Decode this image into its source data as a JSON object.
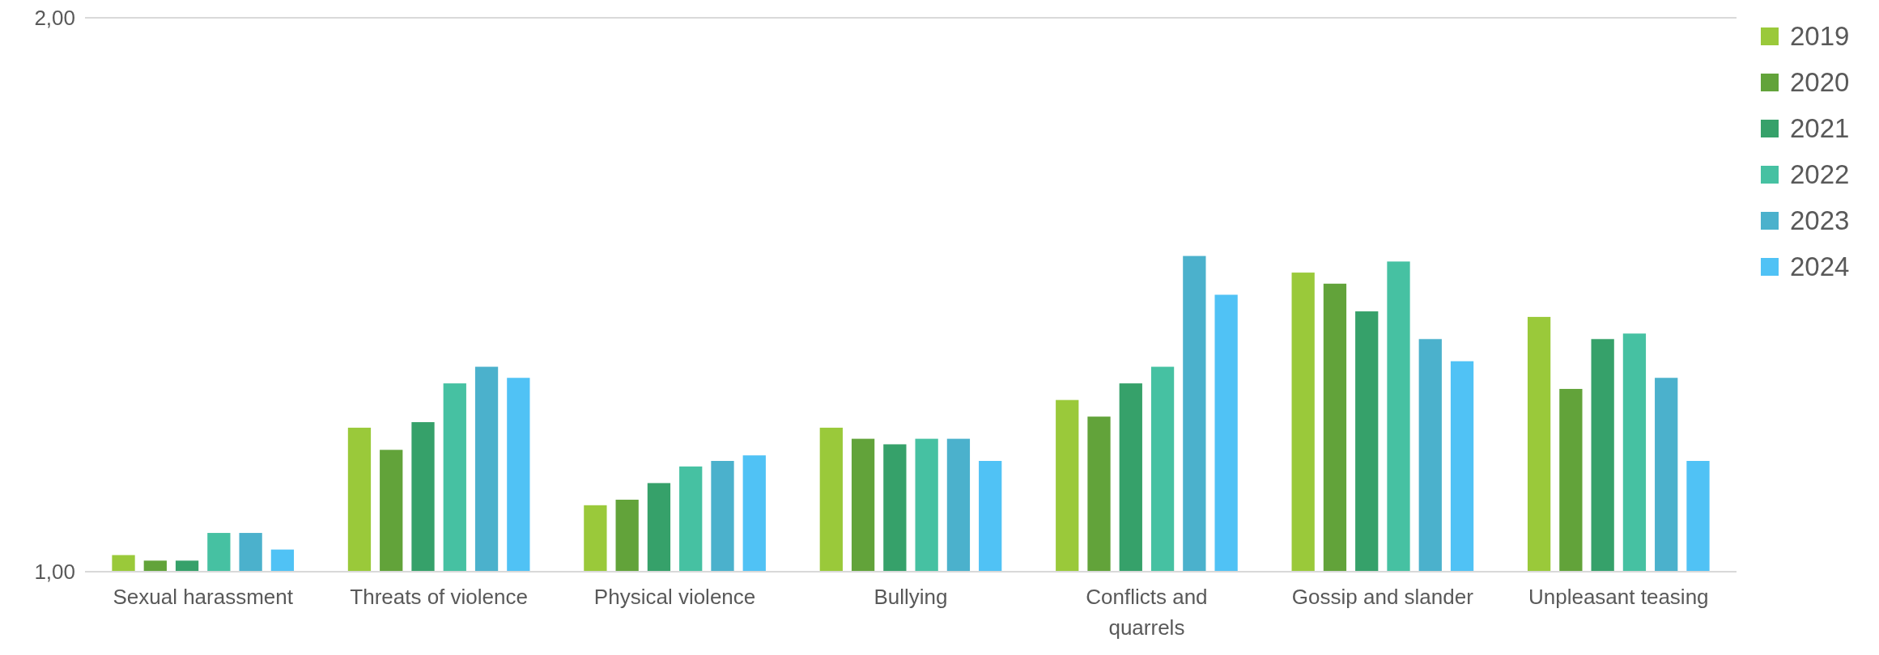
{
  "chart_data": {
    "type": "bar",
    "categories": [
      "Sexual harassment",
      "Threats of violence",
      "Physical violence",
      "Bullying",
      "Conflicts and quarrels",
      "Gossip and slander",
      "Unpleasant teasing"
    ],
    "series": [
      {
        "name": "2019",
        "color": "#9ac93a",
        "values": [
          1.03,
          1.26,
          1.12,
          1.26,
          1.31,
          1.54,
          1.46
        ]
      },
      {
        "name": "2020",
        "color": "#62a33a",
        "values": [
          1.02,
          1.22,
          1.13,
          1.24,
          1.28,
          1.52,
          1.33
        ]
      },
      {
        "name": "2021",
        "color": "#36a16a",
        "values": [
          1.02,
          1.27,
          1.16,
          1.23,
          1.34,
          1.47,
          1.42
        ]
      },
      {
        "name": "2022",
        "color": "#46c1a2",
        "values": [
          1.07,
          1.34,
          1.19,
          1.24,
          1.37,
          1.56,
          1.43
        ]
      },
      {
        "name": "2023",
        "color": "#4bb1cc",
        "values": [
          1.07,
          1.37,
          1.2,
          1.24,
          1.57,
          1.42,
          1.35
        ]
      },
      {
        "name": "2024",
        "color": "#50c2f5",
        "values": [
          1.04,
          1.35,
          1.21,
          1.2,
          1.5,
          1.38,
          1.2
        ]
      }
    ],
    "ylim": [
      1,
      2
    ],
    "yticks": [
      {
        "value": 1,
        "label": "1,00"
      },
      {
        "value": 2,
        "label": "2,00"
      }
    ],
    "legend": "right"
  }
}
